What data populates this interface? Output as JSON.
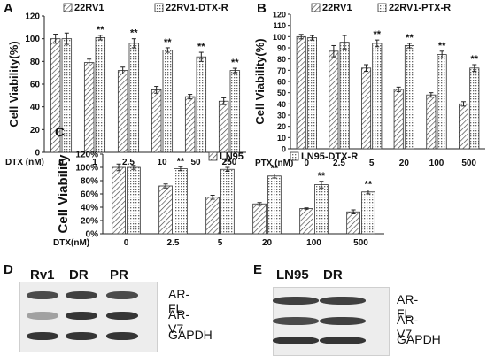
{
  "chart_data": [
    {
      "panel": "A",
      "type": "bar",
      "ylabel": "Cell Viability(%)",
      "xlabel": "DTX (nM)",
      "categories": [
        "0",
        "1",
        "2.5",
        "10",
        "50",
        "250"
      ],
      "yticks": [
        "0",
        "20",
        "40",
        "60",
        "80",
        "100",
        "120"
      ],
      "ylim": [
        0,
        120
      ],
      "legend_position": "top",
      "series": [
        {
          "name": "22RV1",
          "values": [
            100,
            79,
            72,
            55,
            49,
            45
          ],
          "errors": [
            4,
            3,
            3,
            3,
            2,
            3
          ],
          "pattern": "hatch"
        },
        {
          "name": "22RV1-DTX-R",
          "values": [
            100,
            101,
            96,
            90,
            84,
            72
          ],
          "errors": [
            5,
            2,
            4,
            2,
            4,
            2
          ],
          "pattern": "dots"
        }
      ],
      "annotations": [
        "",
        "**",
        "**",
        "**",
        "**",
        "**"
      ]
    },
    {
      "panel": "B",
      "type": "bar",
      "ylabel": "Cell Viability(%)",
      "xlabel": "PTX (nM)",
      "categories": [
        "0",
        "2.5",
        "5",
        "20",
        "100",
        "500"
      ],
      "yticks": [
        "0",
        "10",
        "20",
        "30",
        "40",
        "50",
        "60",
        "70",
        "80",
        "90",
        "100",
        "110",
        "120"
      ],
      "ylim": [
        0,
        120
      ],
      "legend_position": "top",
      "series": [
        {
          "name": "22RV1",
          "values": [
            100,
            87,
            72,
            53,
            48,
            40
          ],
          "errors": [
            2,
            5,
            3,
            2,
            2,
            2
          ],
          "pattern": "hatch"
        },
        {
          "name": "22RV1-PTX-R",
          "values": [
            99,
            95,
            94,
            92,
            84,
            72
          ],
          "errors": [
            2,
            6,
            3,
            2,
            3,
            3
          ],
          "pattern": "dots"
        }
      ],
      "annotations": [
        "",
        "",
        "**",
        "**",
        "**",
        "**"
      ]
    },
    {
      "panel": "C",
      "type": "bar",
      "ylabel": "Cell Viability",
      "xlabel": "DTX(nM)",
      "categories": [
        "0",
        "2.5",
        "5",
        "20",
        "100",
        "500"
      ],
      "yticks": [
        "0%",
        "20%",
        "40%",
        "60%",
        "80%",
        "100%",
        "120%"
      ],
      "ylim": [
        0,
        120
      ],
      "legend_position": "top",
      "series": [
        {
          "name": "LN95",
          "values": [
            100,
            72,
            55,
            45,
            38,
            33
          ],
          "errors": [
            5,
            3,
            3,
            2,
            1,
            3
          ],
          "pattern": "hatch"
        },
        {
          "name": "LN95-DTX-R",
          "values": [
            100,
            98,
            97,
            87,
            74,
            63
          ],
          "errors": [
            3,
            3,
            3,
            3,
            5,
            3
          ],
          "pattern": "dots"
        }
      ],
      "annotations": [
        "",
        "**",
        "**",
        "**",
        "**",
        "**"
      ]
    }
  ],
  "blots": [
    {
      "panel": "D",
      "lanes": [
        "Rv1",
        "DR",
        "PR"
      ],
      "bands": [
        {
          "label": "AR-FL",
          "intensities": [
            0.75,
            0.8,
            0.75
          ]
        },
        {
          "label": "AR-V7",
          "intensities": [
            0.35,
            0.85,
            0.85
          ]
        },
        {
          "label": "GAPDH",
          "intensities": [
            0.85,
            0.85,
            0.85
          ]
        }
      ]
    },
    {
      "panel": "E",
      "lanes": [
        "LN95",
        "DR"
      ],
      "bands": [
        {
          "label": "AR-FL",
          "intensities": [
            0.8,
            0.8
          ]
        },
        {
          "label": "AR-V7",
          "intensities": [
            0.75,
            0.8
          ]
        },
        {
          "label": "GAPDH",
          "intensities": [
            0.85,
            0.85
          ]
        }
      ]
    }
  ],
  "colors": {
    "bar_fill": "#ffffff",
    "bar_stroke": "#333333",
    "text": "#111111",
    "band": "#1a1a1a"
  }
}
